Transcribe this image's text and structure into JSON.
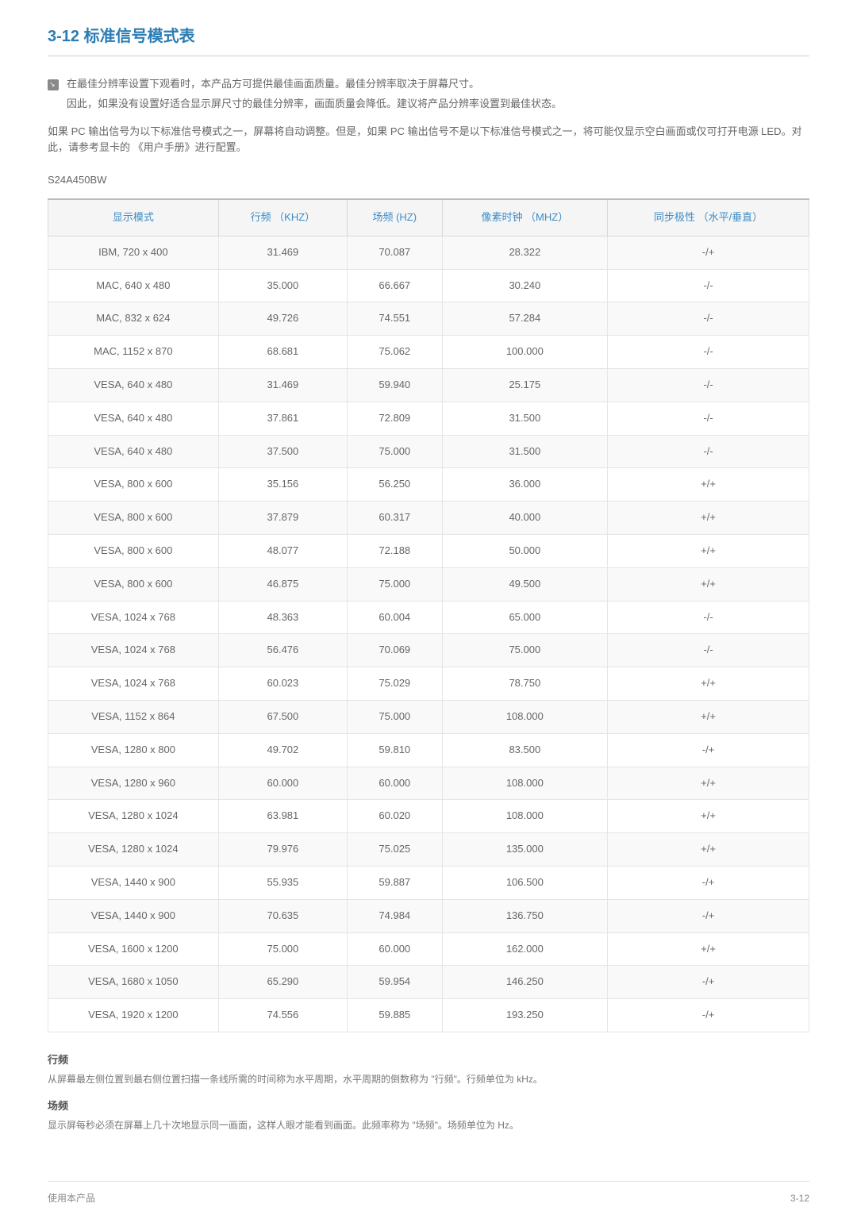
{
  "section": {
    "number": "3-12",
    "title": "标准信号模式表"
  },
  "note": {
    "line1": "在最佳分辨率设置下观看时，本产品方可提供最佳画面质量。最佳分辨率取决于屏幕尺寸。",
    "line2": "因此，如果没有设置好适合显示屏尺寸的最佳分辨率，画面质量会降低。建议将产品分辨率设置到最佳状态。"
  },
  "para1": "如果 PC 输出信号为以下标准信号模式之一，屏幕将自动调整。但是，如果 PC 输出信号不是以下标准信号模式之一，将可能仅显示空白画面或仅可打开电源 LED。对此，请参考显卡的 《用户手册》进行配置。",
  "model": "S24A450BW",
  "table": {
    "columns": [
      "显示模式",
      "行频 （KHZ）",
      "场频 (HZ)",
      "像素时钟 （MHZ）",
      "同步极性 （水平/垂直）"
    ],
    "rows": [
      [
        "IBM, 720 x 400",
        "31.469",
        "70.087",
        "28.322",
        "-/+"
      ],
      [
        "MAC, 640 x 480",
        "35.000",
        "66.667",
        "30.240",
        "-/-"
      ],
      [
        "MAC, 832 x 624",
        "49.726",
        "74.551",
        "57.284",
        "-/-"
      ],
      [
        "MAC, 1152 x 870",
        "68.681",
        "75.062",
        "100.000",
        "-/-"
      ],
      [
        "VESA, 640 x 480",
        "31.469",
        "59.940",
        "25.175",
        "-/-"
      ],
      [
        "VESA, 640 x 480",
        "37.861",
        "72.809",
        "31.500",
        "-/-"
      ],
      [
        "VESA, 640 x 480",
        "37.500",
        "75.000",
        "31.500",
        "-/-"
      ],
      [
        "VESA, 800 x 600",
        "35.156",
        "56.250",
        "36.000",
        "+/+"
      ],
      [
        "VESA, 800 x 600",
        "37.879",
        "60.317",
        "40.000",
        "+/+"
      ],
      [
        "VESA, 800 x 600",
        "48.077",
        "72.188",
        "50.000",
        "+/+"
      ],
      [
        "VESA, 800 x 600",
        "46.875",
        "75.000",
        "49.500",
        "+/+"
      ],
      [
        "VESA, 1024 x 768",
        "48.363",
        "60.004",
        "65.000",
        "-/-"
      ],
      [
        "VESA, 1024 x 768",
        "56.476",
        "70.069",
        "75.000",
        "-/-"
      ],
      [
        "VESA, 1024 x 768",
        "60.023",
        "75.029",
        "78.750",
        "+/+"
      ],
      [
        "VESA, 1152 x 864",
        "67.500",
        "75.000",
        "108.000",
        "+/+"
      ],
      [
        "VESA, 1280 x 800",
        "49.702",
        "59.810",
        "83.500",
        "-/+"
      ],
      [
        "VESA, 1280 x 960",
        "60.000",
        "60.000",
        "108.000",
        "+/+"
      ],
      [
        "VESA, 1280 x 1024",
        "63.981",
        "60.020",
        "108.000",
        "+/+"
      ],
      [
        "VESA, 1280 x 1024",
        "79.976",
        "75.025",
        "135.000",
        "+/+"
      ],
      [
        "VESA, 1440 x 900",
        "55.935",
        "59.887",
        "106.500",
        "-/+"
      ],
      [
        "VESA, 1440 x 900",
        "70.635",
        "74.984",
        "136.750",
        "-/+"
      ],
      [
        "VESA, 1600 x 1200",
        "75.000",
        "60.000",
        "162.000",
        "+/+"
      ],
      [
        "VESA, 1680 x 1050",
        "65.290",
        "59.954",
        "146.250",
        "-/+"
      ],
      [
        "VESA, 1920 x 1200",
        "74.556",
        "59.885",
        "193.250",
        "-/+"
      ]
    ]
  },
  "definitions": {
    "hfreq_title": "行频",
    "hfreq_text": "从屏幕最左侧位置到最右侧位置扫描一条线所需的时间称为水平周期，水平周期的倒数称为 \"行频\"。行频单位为 kHz。",
    "vfreq_title": "场频",
    "vfreq_text": "显示屏每秒必须在屏幕上几十次地显示同一画面，这样人眼才能看到画面。此频率称为 \"场频\"。场频单位为 Hz。"
  },
  "footer": {
    "left": "使用本产品",
    "right": "3-12"
  }
}
